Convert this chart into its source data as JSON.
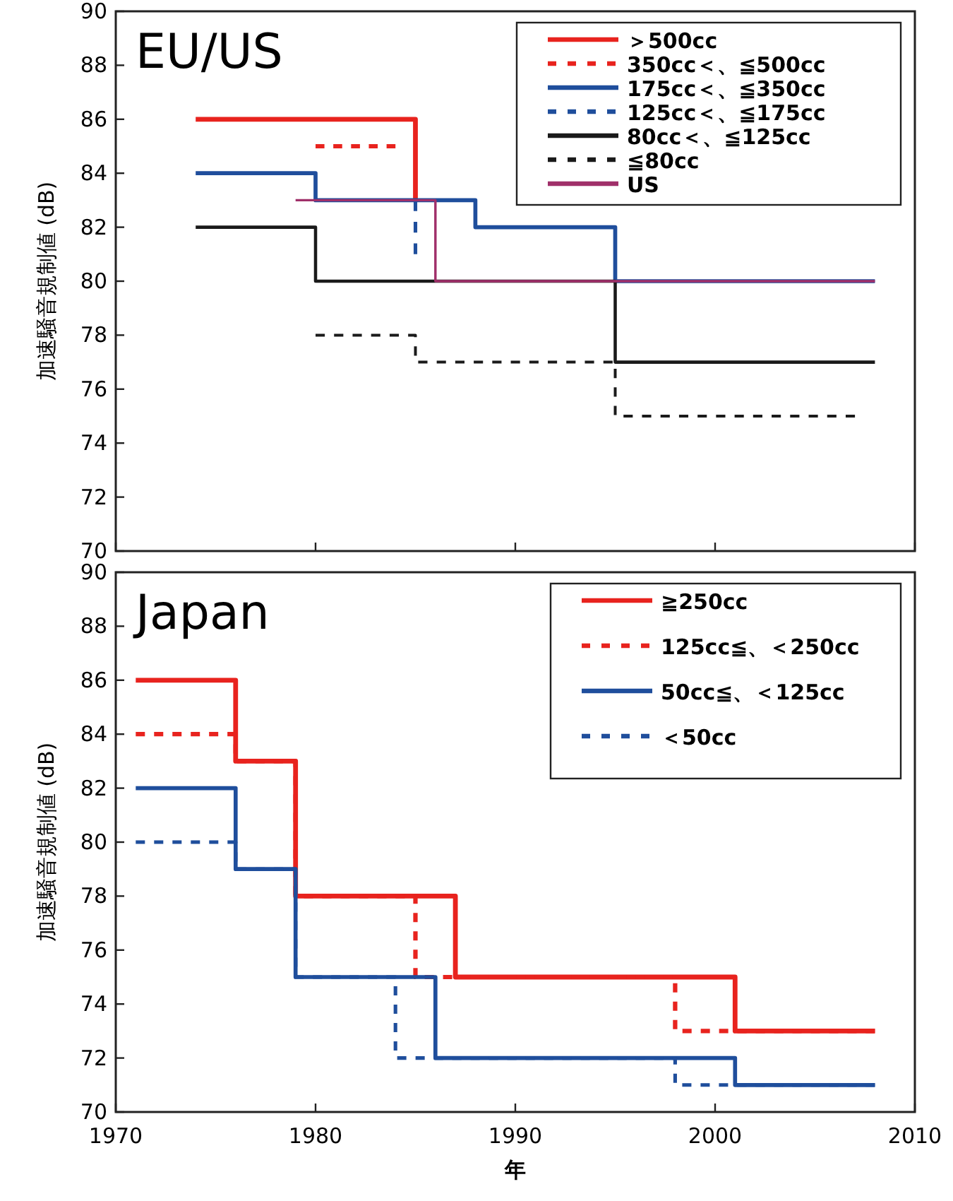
{
  "chart_data": [
    {
      "type": "step",
      "title": "EU/US",
      "ylabel": "加速騒音規制値 (dB)",
      "xlim": [
        1970,
        2010
      ],
      "xticks": [
        {
          "value": 1970,
          "label": null
        },
        {
          "value": 1980,
          "label": null
        },
        {
          "value": 1990,
          "label": null
        },
        {
          "value": 2000,
          "label": null
        },
        {
          "value": 2010,
          "label": null
        }
      ],
      "ylim": [
        70,
        90
      ],
      "yticks": [
        70,
        72,
        74,
        76,
        78,
        80,
        82,
        84,
        86,
        88,
        90
      ],
      "tick_labels": "y",
      "legend": "top right",
      "series": [
        {
          "name": "＞500cc",
          "color": "#e8231e",
          "x": [
            1974,
            1985
          ],
          "values": [
            86,
            83
          ]
        },
        {
          "name": "350cc＜、≦500cc",
          "color": "#e8231e",
          "line_style": "dashed",
          "x": [
            1980,
            1984
          ],
          "values": [
            85,
            85
          ]
        },
        {
          "name": "175cc＜、≦350cc",
          "color": "#1f4e9c",
          "x": [
            1974,
            1980,
            1988,
            1995,
            2008
          ],
          "values": [
            84,
            83,
            82,
            80,
            80
          ]
        },
        {
          "name": "125cc＜、≦175cc",
          "color": "#1f4e9c",
          "line_style": "dashed",
          "x": [
            1985,
            1985
          ],
          "values": [
            83,
            81
          ]
        },
        {
          "name": "80cc＜、≦125cc",
          "color": "#1a1a1a",
          "x": [
            1974,
            1980,
            1995,
            2008
          ],
          "values": [
            82,
            80,
            77,
            77
          ]
        },
        {
          "name": "≦80cc",
          "color": "#1a1a1a",
          "line_style": "dashed",
          "x": [
            1980,
            1985,
            1995,
            2007
          ],
          "values": [
            78,
            77,
            75,
            75
          ]
        },
        {
          "name": "US",
          "color": "#a0306a",
          "x": [
            1979,
            1986,
            2008
          ],
          "values": [
            83,
            80,
            80
          ]
        }
      ]
    },
    {
      "type": "step",
      "title": "Japan",
      "ylabel": "加速騒音規制値 (dB)",
      "xlabel": "年",
      "xlim": [
        1970,
        2010
      ],
      "xticks": [
        1970,
        1980,
        1990,
        2000,
        2010
      ],
      "ylim": [
        70,
        90
      ],
      "yticks": [
        70,
        72,
        74,
        76,
        78,
        80,
        82,
        84,
        86,
        88,
        90
      ],
      "legend": "top right",
      "series": [
        {
          "name": "≧250cc",
          "color": "#e8231e",
          "x": [
            1971,
            1976,
            1979,
            1987,
            2001,
            2008
          ],
          "values": [
            86,
            83,
            78,
            75,
            73,
            73
          ]
        },
        {
          "name": "125cc≦、＜250cc",
          "color": "#e8231e",
          "line_style": "dashed",
          "x": [
            1971,
            1976,
            1979,
            1985,
            1998,
            2008
          ],
          "values": [
            84,
            83,
            78,
            75,
            73,
            73
          ]
        },
        {
          "name": "50cc≦、＜125cc",
          "color": "#1f4e9c",
          "x": [
            1971,
            1976,
            1979,
            1986,
            2001,
            2008
          ],
          "values": [
            82,
            79,
            75,
            72,
            71,
            71
          ]
        },
        {
          "name": "＜50cc",
          "color": "#1f4e9c",
          "line_style": "dashed",
          "x": [
            1971,
            1976,
            1979,
            1984,
            1998,
            2008
          ],
          "values": [
            80,
            79,
            75,
            72,
            71,
            71
          ]
        }
      ]
    }
  ]
}
